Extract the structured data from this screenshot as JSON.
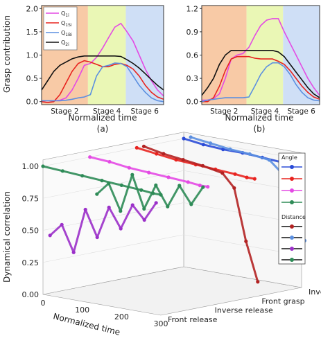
{
  "panels": {
    "a": {
      "label": "(a)"
    },
    "b": {
      "label": "(b)"
    }
  },
  "stage_labels": [
    "Stage 2",
    "Stage 4",
    "Stage 6"
  ],
  "top_xlabel": "Normalized time",
  "top_ylabel": "Grasp contribution",
  "colors": {
    "stage1": "#f8caa6",
    "stage2": "#eaf7b5",
    "stage3": "#cfdff6",
    "magenta": "#e44ae4",
    "red": "#e8231f",
    "blue": "#5b8fe0",
    "black": "#111111",
    "green": "#2e8b57",
    "purple": "#9b30c9",
    "darkred": "#b22222",
    "royal": "#2a4bd7"
  },
  "chart_data": [
    {
      "type": "line",
      "panel": "(a)",
      "xlabel": "Normalized time",
      "ylabel": "Grasp contribution",
      "ylim": [
        0.0,
        2.0
      ],
      "yticks": [
        "0.0",
        "0.5",
        "1.0",
        "1.5",
        "2.0"
      ],
      "xticks": [
        "Stage 2",
        "Stage 4",
        "Stage 6"
      ],
      "legend_position": "top-left",
      "x": [
        0,
        0.05,
        0.1,
        0.15,
        0.2,
        0.25,
        0.3,
        0.35,
        0.4,
        0.45,
        0.5,
        0.55,
        0.6,
        0.65,
        0.7,
        0.75,
        0.8,
        0.85,
        0.9,
        0.95,
        1.0
      ],
      "series": [
        {
          "name": "Q1i",
          "label_main": "Q",
          "label_sub": "1i",
          "color": "#e44ae4",
          "values": [
            0.02,
            0.02,
            0.02,
            0.03,
            0.08,
            0.25,
            0.5,
            0.78,
            0.82,
            0.95,
            1.15,
            1.38,
            1.6,
            1.68,
            1.5,
            1.3,
            1.0,
            0.7,
            0.45,
            0.25,
            0.12
          ]
        },
        {
          "name": "Q1Si",
          "label_main": "Q",
          "label_sub": "1Si",
          "color": "#e8231f",
          "values": [
            0.0,
            -0.02,
            0.0,
            0.15,
            0.4,
            0.65,
            0.82,
            0.88,
            0.85,
            0.8,
            0.75,
            0.75,
            0.8,
            0.82,
            0.78,
            0.7,
            0.55,
            0.35,
            0.2,
            0.1,
            0.05
          ]
        },
        {
          "name": "Q1Bi",
          "label_main": "Q",
          "label_sub": "1Bi",
          "color": "#5b8fe0",
          "values": [
            0.02,
            0.02,
            0.02,
            0.02,
            0.03,
            0.05,
            0.08,
            0.1,
            0.15,
            0.55,
            0.75,
            0.78,
            0.83,
            0.82,
            0.75,
            0.55,
            0.35,
            0.2,
            0.08,
            0.02,
            0.0
          ]
        },
        {
          "name": "Q2i",
          "label_main": "Q",
          "label_sub": "2i",
          "color": "#111111",
          "values": [
            0.25,
            0.45,
            0.65,
            0.78,
            0.85,
            0.92,
            0.96,
            0.98,
            0.98,
            0.98,
            0.98,
            0.98,
            0.98,
            0.97,
            0.9,
            0.82,
            0.72,
            0.6,
            0.47,
            0.35,
            0.25
          ]
        }
      ]
    },
    {
      "type": "line",
      "panel": "(b)",
      "xlabel": "Normalized time",
      "ylim": [
        0.0,
        1.2
      ],
      "yticks": [
        "0.0",
        "0.3",
        "0.6",
        "0.9",
        "1.2"
      ],
      "xticks": [
        "Stage 2",
        "Stage 4",
        "Stage 6"
      ],
      "x": [
        0,
        0.05,
        0.1,
        0.15,
        0.2,
        0.25,
        0.3,
        0.35,
        0.4,
        0.45,
        0.5,
        0.55,
        0.6,
        0.65,
        0.7,
        0.75,
        0.8,
        0.85,
        0.9,
        0.95,
        1.0
      ],
      "series": [
        {
          "name": "Q1i",
          "color": "#e44ae4",
          "values": [
            0.02,
            0.02,
            0.04,
            0.1,
            0.3,
            0.55,
            0.6,
            0.62,
            0.7,
            0.85,
            0.98,
            1.05,
            1.07,
            1.07,
            0.9,
            0.75,
            0.6,
            0.45,
            0.3,
            0.18,
            0.08
          ]
        },
        {
          "name": "Q1Si",
          "color": "#e8231f",
          "values": [
            0.0,
            0.0,
            0.05,
            0.2,
            0.4,
            0.55,
            0.58,
            0.58,
            0.58,
            0.56,
            0.55,
            0.55,
            0.55,
            0.52,
            0.48,
            0.4,
            0.3,
            0.2,
            0.12,
            0.06,
            0.03
          ]
        },
        {
          "name": "Q1Bi",
          "color": "#5b8fe0",
          "values": [
            0.0,
            0.02,
            0.03,
            0.04,
            0.05,
            0.05,
            0.05,
            0.05,
            0.06,
            0.2,
            0.35,
            0.45,
            0.5,
            0.5,
            0.45,
            0.35,
            0.22,
            0.12,
            0.05,
            0.02,
            0.01
          ]
        },
        {
          "name": "Q2i",
          "color": "#111111",
          "values": [
            0.08,
            0.18,
            0.3,
            0.48,
            0.6,
            0.66,
            0.66,
            0.66,
            0.66,
            0.66,
            0.66,
            0.66,
            0.66,
            0.64,
            0.58,
            0.48,
            0.38,
            0.28,
            0.18,
            0.1,
            0.05
          ]
        }
      ]
    },
    {
      "type": "scatter",
      "panel": "3d",
      "zlabel": "Dynamical correlation",
      "xlabel": "Normalized time",
      "zlim": [
        0.0,
        1.0
      ],
      "zticks": [
        "0.00",
        "0.25",
        "0.50",
        "0.75",
        "1.00"
      ],
      "xlim": [
        0,
        300
      ],
      "xticks": [
        "0",
        "100",
        "200",
        "300"
      ],
      "yticks": [
        "Front release",
        "Inverse release",
        "Front grasp",
        "Inverse grasp"
      ],
      "legend_headings": [
        "Angle",
        "Distance"
      ],
      "series": [
        {
          "group": "Angle",
          "category": "Inverse grasp",
          "color": "#2a4bd7",
          "x": [
            0,
            50,
            100,
            150,
            200,
            250,
            280,
            300
          ],
          "z": [
            1.0,
            0.98,
            0.97,
            0.97,
            0.96,
            0.95,
            0.95,
            0.95
          ]
        },
        {
          "group": "Angle",
          "category": "Front grasp",
          "color": "#e8231f",
          "x": [
            0,
            50,
            100,
            150,
            200,
            250,
            280,
            300
          ],
          "z": [
            1.0,
            0.98,
            0.96,
            0.95,
            0.94,
            0.93,
            0.92,
            0.92
          ]
        },
        {
          "group": "Angle",
          "category": "Inverse release",
          "color": "#e44ae4",
          "x": [
            0,
            50,
            100,
            150,
            200,
            250,
            280,
            300
          ],
          "z": [
            1.0,
            0.99,
            0.97,
            0.96,
            0.95,
            0.94,
            0.93,
            0.93
          ]
        },
        {
          "group": "Angle",
          "category": "Front release",
          "color": "#2e8b57",
          "x": [
            0,
            50,
            100,
            150,
            200,
            250,
            280,
            300
          ],
          "z": [
            1.0,
            0.99,
            0.98,
            0.97,
            0.96,
            0.95,
            0.94,
            0.94
          ]
        },
        {
          "group": "Distance",
          "category": "Front grasp",
          "color": "#b22222",
          "x": [
            0,
            50,
            100,
            150,
            200,
            230,
            260,
            290
          ],
          "z": [
            1.0,
            0.97,
            0.95,
            0.93,
            0.9,
            0.8,
            0.4,
            0.1
          ]
        },
        {
          "group": "Distance",
          "category": "Inverse grasp",
          "color": "#5b8fe0",
          "x": [
            0,
            50,
            100,
            150,
            200,
            230,
            260,
            290
          ],
          "z": [
            1.0,
            0.98,
            0.96,
            0.95,
            0.93,
            0.85,
            0.6,
            0.35
          ]
        },
        {
          "group": "Distance",
          "category": "Front release",
          "color": "#9b30c9",
          "x": [
            0,
            30,
            60,
            90,
            120,
            150,
            180,
            210,
            240,
            270
          ],
          "z": [
            0.45,
            0.55,
            0.35,
            0.7,
            0.5,
            0.75,
            0.6,
            0.8,
            0.7,
            0.85
          ]
        },
        {
          "group": "Distance",
          "category": "Inverse release",
          "color": "#2e8b57",
          "x": [
            0,
            30,
            60,
            90,
            120,
            150,
            180,
            210,
            240,
            270
          ],
          "z": [
            0.7,
            0.8,
            0.6,
            0.9,
            0.65,
            0.85,
            0.7,
            0.88,
            0.75,
            0.9
          ]
        }
      ]
    }
  ]
}
